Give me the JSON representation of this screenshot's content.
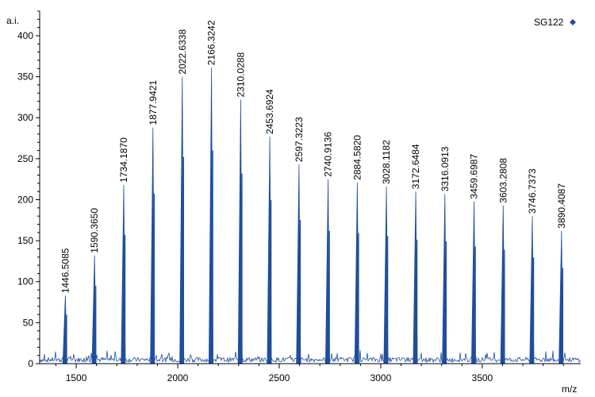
{
  "chart_data": {
    "type": "line",
    "title": "",
    "xlabel": "m/z",
    "ylabel": "a.i.",
    "xlim": [
      1320,
      3985
    ],
    "ylim": [
      0,
      430
    ],
    "x_ticks": [
      1500,
      2000,
      2500,
      3000,
      3500
    ],
    "y_ticks": [
      0,
      50,
      100,
      150,
      200,
      250,
      300,
      350,
      400
    ],
    "legend": {
      "label": "SG122",
      "placement": "top-right"
    },
    "series_color": "#1f4e9c",
    "peaks": [
      {
        "mz": 1446.5085,
        "label": "1446.5085",
        "intensity": 83
      },
      {
        "mz": 1590.365,
        "label": "1590.3650",
        "intensity": 132
      },
      {
        "mz": 1734.187,
        "label": "1734.1870",
        "intensity": 218
      },
      {
        "mz": 1877.9421,
        "label": "1877.9421",
        "intensity": 288
      },
      {
        "mz": 2022.6338,
        "label": "2022.6338",
        "intensity": 350
      },
      {
        "mz": 2166.3242,
        "label": "2166.3242",
        "intensity": 361
      },
      {
        "mz": 2310.0288,
        "label": "2310.0288",
        "intensity": 322
      },
      {
        "mz": 2453.6924,
        "label": "2453.6924",
        "intensity": 277
      },
      {
        "mz": 2597.3223,
        "label": "2597.3223",
        "intensity": 243
      },
      {
        "mz": 2740.9136,
        "label": "2740.9136",
        "intensity": 225
      },
      {
        "mz": 2884.582,
        "label": "2884.5820",
        "intensity": 221
      },
      {
        "mz": 3028.1182,
        "label": "3028.1182",
        "intensity": 216
      },
      {
        "mz": 3172.6484,
        "label": "3172.6484",
        "intensity": 210
      },
      {
        "mz": 3316.0913,
        "label": "3316.0913",
        "intensity": 207
      },
      {
        "mz": 3459.6987,
        "label": "3459.6987",
        "intensity": 198
      },
      {
        "mz": 3603.2808,
        "label": "3603.2808",
        "intensity": 193
      },
      {
        "mz": 3746.7373,
        "label": "3746.7373",
        "intensity": 180
      },
      {
        "mz": 3890.4087,
        "label": "3890.4087",
        "intensity": 162
      }
    ]
  }
}
